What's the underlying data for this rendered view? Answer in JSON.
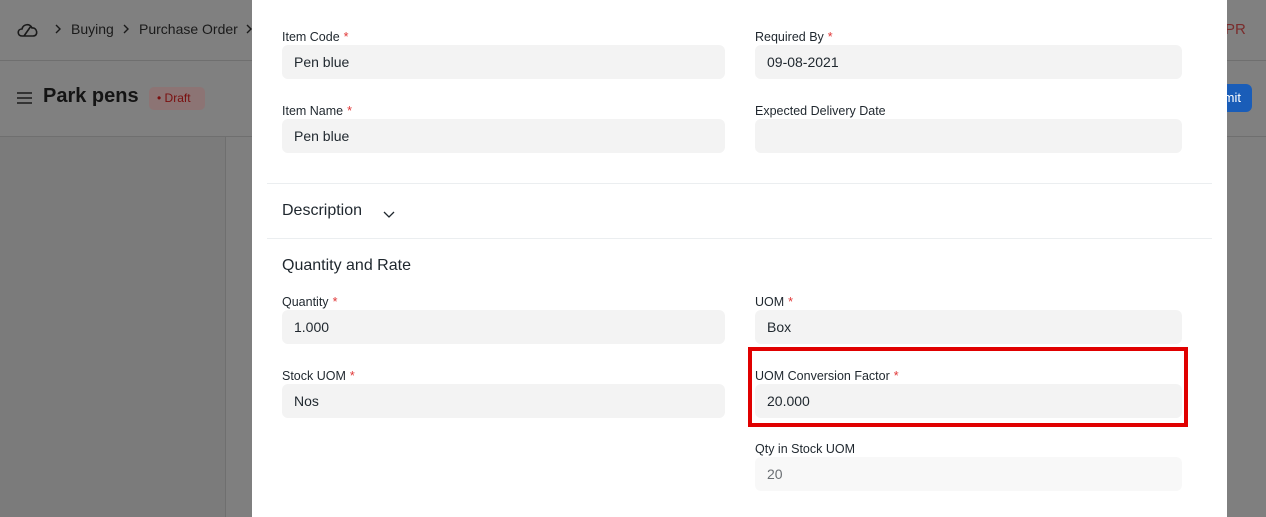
{
  "navbar": {
    "breadcrumbs": [
      "Buying",
      "Purchase Order"
    ],
    "avatar": "PR"
  },
  "page_header": {
    "title": "Park pens",
    "status": "Draft",
    "primary_button": "Submit"
  },
  "dialog": {
    "required_mark": "*",
    "sections": [
      {
        "fields": [
          {
            "label": "Item Code",
            "required": true,
            "value": "Pen blue"
          },
          {
            "label": "Required By",
            "required": true,
            "value": "09-08-2021"
          },
          {
            "label": "Item Name",
            "required": true,
            "value": "Pen blue"
          },
          {
            "label": "Expected Delivery Date",
            "required": false,
            "value": null
          }
        ]
      },
      {
        "title": "Description",
        "collapsed": true
      },
      {
        "title": "Quantity and Rate",
        "fields": [
          {
            "label": "Quantity",
            "required": true,
            "value": "1.000"
          },
          {
            "label": "UOM",
            "required": true,
            "value": "Box"
          },
          {
            "label": "Stock UOM",
            "required": true,
            "value": "Nos"
          },
          {
            "label": "UOM Conversion Factor",
            "required": true,
            "value": "20.000",
            "highlighted": true
          },
          {
            "label": "Qty in Stock UOM",
            "required": false,
            "value": "20",
            "read_only": true
          }
        ]
      }
    ]
  }
}
